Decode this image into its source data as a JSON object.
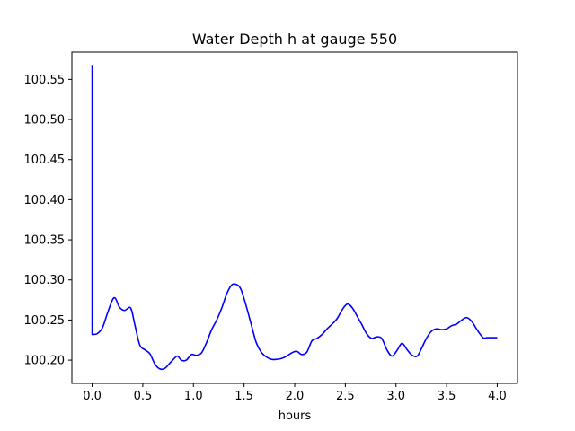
{
  "chart_data": {
    "type": "line",
    "title": "Water Depth h at gauge 550",
    "xlabel": "hours",
    "ylabel": "",
    "xlim": [
      -0.2,
      4.2
    ],
    "ylim": [
      100.171,
      100.584
    ],
    "xticks": [
      0.0,
      0.5,
      1.0,
      1.5,
      2.0,
      2.5,
      3.0,
      3.5,
      4.0
    ],
    "xtick_labels": [
      "0.0",
      "0.5",
      "1.0",
      "1.5",
      "2.0",
      "2.5",
      "3.0",
      "3.5",
      "4.0"
    ],
    "yticks": [
      100.2,
      100.25,
      100.3,
      100.35,
      100.4,
      100.45,
      100.5,
      100.55
    ],
    "ytick_labels": [
      "100.20",
      "100.25",
      "100.30",
      "100.35",
      "100.40",
      "100.45",
      "100.50",
      "100.55"
    ],
    "grid": false,
    "series": [
      {
        "color": "#0000ff",
        "x": [
          0.0,
          0.0,
          0.01,
          0.05,
          0.1,
          0.15,
          0.2,
          0.23,
          0.27,
          0.32,
          0.38,
          0.42,
          0.47,
          0.52,
          0.57,
          0.62,
          0.67,
          0.72,
          0.78,
          0.84,
          0.88,
          0.93,
          0.98,
          1.03,
          1.08,
          1.13,
          1.18,
          1.23,
          1.28,
          1.33,
          1.38,
          1.43,
          1.47,
          1.52,
          1.57,
          1.62,
          1.67,
          1.72,
          1.77,
          1.82,
          1.87,
          1.92,
          1.97,
          2.02,
          2.07,
          2.12,
          2.17,
          2.22,
          2.27,
          2.32,
          2.37,
          2.42,
          2.47,
          2.52,
          2.57,
          2.62,
          2.66,
          2.71,
          2.76,
          2.81,
          2.86,
          2.91,
          2.96,
          3.01,
          3.06,
          3.11,
          3.16,
          3.21,
          3.25,
          3.3,
          3.35,
          3.4,
          3.45,
          3.5,
          3.55,
          3.6,
          3.65,
          3.7,
          3.75,
          3.8,
          3.86,
          3.9,
          3.95,
          4.0
        ],
        "y": [
          100.568,
          100.232,
          100.232,
          100.233,
          100.24,
          100.258,
          100.275,
          100.277,
          100.266,
          100.262,
          100.265,
          100.245,
          100.219,
          100.213,
          100.208,
          100.195,
          100.189,
          100.19,
          100.198,
          100.205,
          100.2,
          100.2,
          100.207,
          100.206,
          100.209,
          100.222,
          100.238,
          100.25,
          100.265,
          100.283,
          100.294,
          100.294,
          100.288,
          100.268,
          100.245,
          100.222,
          100.21,
          100.204,
          100.201,
          100.201,
          100.202,
          100.205,
          100.209,
          100.211,
          100.207,
          100.21,
          100.224,
          100.227,
          100.232,
          100.239,
          100.245,
          100.252,
          100.263,
          100.27,
          100.265,
          100.254,
          100.245,
          100.233,
          100.227,
          100.229,
          100.227,
          100.213,
          100.205,
          100.212,
          100.221,
          100.213,
          100.206,
          100.205,
          100.214,
          100.227,
          100.236,
          100.239,
          100.238,
          100.239,
          100.243,
          100.245,
          100.25,
          100.253,
          100.248,
          100.238,
          100.228,
          100.228,
          100.228,
          100.228
        ]
      }
    ]
  }
}
